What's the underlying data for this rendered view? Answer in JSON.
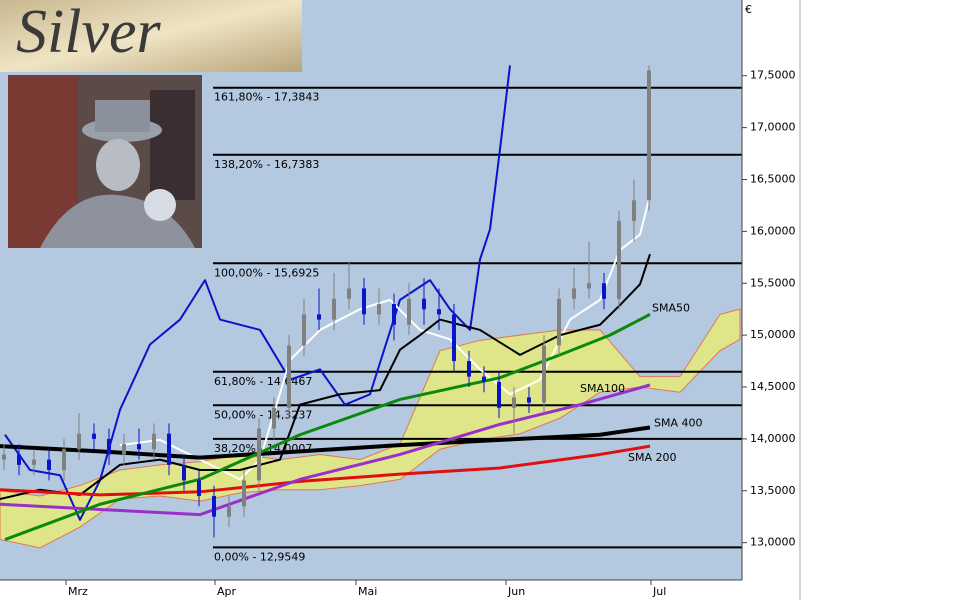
{
  "chart_data": {
    "type": "candlestick",
    "logo": "Silver",
    "currency": "€",
    "xlim": [
      0,
      148.4
    ],
    "ylim": [
      12.64,
      18.23
    ],
    "xticks": [
      {
        "value": 13.2,
        "label": "Mrz"
      },
      {
        "value": 43,
        "label": "Apr"
      },
      {
        "value": 71.2,
        "label": "Mai"
      },
      {
        "value": 101.2,
        "label": "Jun"
      },
      {
        "value": 130.2,
        "label": "Jul"
      }
    ],
    "yticks": [
      {
        "value": 13,
        "label": "13,0000"
      },
      {
        "value": 13.5,
        "label": "13,5000"
      },
      {
        "value": 14,
        "label": "14,0000"
      },
      {
        "value": 14.5,
        "label": "14,5000"
      },
      {
        "value": 15,
        "label": "15,0000"
      },
      {
        "value": 15.5,
        "label": "15,5000"
      },
      {
        "value": 16,
        "label": "16,0000"
      },
      {
        "value": 16.5,
        "label": "16,5000"
      },
      {
        "value": 17,
        "label": "17,0000"
      },
      {
        "value": 17.5,
        "label": "17,5000"
      }
    ],
    "fib_levels": [
      {
        "label": "161,80% - 17,3843",
        "value": 17.3843
      },
      {
        "label": "138,20% - 16,7383",
        "value": 16.7383
      },
      {
        "label": "100,00% - 15,6925",
        "value": 15.6925
      },
      {
        "label": "61,80% - 14,6467",
        "value": 14.6467
      },
      {
        "label": "50,00% - 14,3237",
        "value": 14.3237
      },
      {
        "label": "38,20% - 14,0007",
        "value": 14.0007
      },
      {
        "label": "0,00% - 12,9549",
        "value": 12.9549
      }
    ],
    "cloud": {
      "color": "#dfe68a",
      "edge": "#e07850",
      "x": [
        0,
        8,
        16,
        24,
        32,
        40,
        48,
        56,
        64,
        72,
        80,
        88,
        96,
        104,
        112,
        120,
        128,
        136,
        144,
        148
      ],
      "upper": [
        13.5,
        13.45,
        13.55,
        13.7,
        13.75,
        13.78,
        13.85,
        13.8,
        13.85,
        13.8,
        13.95,
        14.85,
        14.95,
        15.0,
        15.05,
        15.05,
        14.6,
        14.6,
        15.2,
        15.25
      ],
      "lower": [
        13.03,
        12.95,
        13.15,
        13.42,
        13.45,
        13.4,
        13.48,
        13.51,
        13.51,
        13.55,
        13.61,
        13.9,
        13.99,
        14.05,
        14.2,
        14.45,
        14.5,
        14.45,
        14.85,
        14.96
      ]
    },
    "candles": {
      "up_color": "#808080",
      "down_color": "#0a14c8",
      "x": [
        0,
        3,
        6,
        9,
        12,
        15,
        18,
        21,
        24,
        27,
        30,
        33,
        36,
        39,
        42,
        45,
        48,
        51,
        54,
        57,
        60,
        63,
        66,
        69,
        72,
        75,
        78,
        81,
        84,
        87,
        90,
        93,
        96,
        99,
        102,
        105,
        108,
        111,
        114,
        117,
        120,
        123,
        126,
        129
      ],
      "open": [
        13.8,
        13.85,
        13.75,
        13.8,
        13.7,
        13.9,
        14.05,
        14.0,
        13.85,
        13.95,
        13.9,
        14.05,
        13.75,
        13.6,
        13.45,
        13.25,
        13.35,
        13.6,
        14.1,
        14.3,
        14.9,
        15.2,
        15.15,
        15.35,
        15.45,
        15.2,
        15.3,
        15.1,
        15.35,
        15.25,
        15.2,
        14.75,
        14.6,
        14.55,
        14.3,
        14.4,
        14.35,
        14.9,
        15.35,
        15.45,
        15.5,
        15.35,
        16.1,
        16.3
      ],
      "high": [
        13.95,
        13.95,
        13.9,
        13.9,
        14.0,
        14.25,
        14.15,
        14.1,
        14.05,
        14.1,
        14.15,
        14.15,
        13.85,
        13.7,
        13.55,
        13.45,
        13.7,
        14.2,
        14.4,
        15.0,
        15.35,
        15.45,
        15.6,
        15.7,
        15.55,
        15.45,
        15.4,
        15.5,
        15.55,
        15.45,
        15.3,
        14.85,
        14.7,
        14.65,
        14.5,
        14.5,
        15.0,
        15.45,
        15.65,
        15.9,
        15.6,
        16.2,
        16.5,
        17.6
      ],
      "low": [
        13.7,
        13.65,
        13.65,
        13.6,
        13.6,
        13.8,
        13.9,
        13.75,
        13.75,
        13.8,
        13.8,
        13.65,
        13.5,
        13.35,
        13.05,
        13.15,
        13.25,
        13.5,
        14.0,
        14.2,
        14.8,
        15.05,
        15.05,
        15.25,
        15.1,
        15.1,
        14.95,
        15.0,
        15.1,
        15.05,
        14.65,
        14.5,
        14.45,
        14.2,
        14.05,
        14.25,
        14.25,
        14.8,
        15.25,
        15.35,
        15.25,
        15.25,
        15.9,
        16.2
      ],
      "close": [
        13.85,
        13.75,
        13.8,
        13.7,
        13.9,
        14.05,
        14.0,
        13.85,
        13.95,
        13.9,
        14.05,
        13.75,
        13.6,
        13.45,
        13.25,
        13.35,
        13.6,
        14.1,
        14.3,
        14.9,
        15.2,
        15.15,
        15.35,
        15.45,
        15.2,
        15.3,
        15.1,
        15.35,
        15.25,
        15.2,
        14.75,
        14.6,
        14.55,
        14.3,
        14.4,
        14.35,
        14.9,
        15.35,
        15.45,
        15.5,
        15.35,
        16.1,
        16.3,
        17.55
      ]
    },
    "series": [
      {
        "color": "#0a14c8",
        "width": 2,
        "x": [
          1,
          6,
          12,
          16,
          20,
          24,
          30,
          36,
          41,
          44,
          52,
          58,
          64,
          69,
          74,
          80,
          86,
          90,
          94,
          96,
          98,
          100,
          102
        ],
        "values": [
          14.04,
          13.7,
          13.65,
          13.22,
          13.6,
          14.28,
          14.91,
          15.15,
          15.53,
          15.15,
          15.05,
          14.57,
          14.67,
          14.33,
          14.43,
          15.34,
          15.53,
          15.25,
          15.05,
          15.73,
          16.02,
          16.79,
          17.6
        ]
      },
      {
        "color": "#ffffff",
        "width": 2,
        "x": [
          24,
          32,
          40,
          48,
          52,
          58,
          64,
          72,
          78,
          84,
          90,
          96,
          102,
          108,
          114,
          120,
          124,
          128,
          130
        ],
        "values": [
          13.94,
          13.99,
          13.8,
          13.61,
          13.8,
          14.76,
          15.05,
          15.25,
          15.34,
          15.05,
          14.96,
          14.67,
          14.43,
          14.57,
          15.15,
          15.34,
          15.82,
          15.97,
          16.35
        ]
      },
      {
        "color": "#000000",
        "width": 2,
        "x": [
          0,
          8,
          16,
          24,
          32,
          40,
          48,
          56,
          60,
          68,
          76,
          80,
          84,
          88,
          96,
          104,
          112,
          120,
          124,
          128,
          130
        ],
        "values": [
          13.42,
          13.51,
          13.46,
          13.75,
          13.8,
          13.7,
          13.7,
          13.8,
          14.33,
          14.43,
          14.47,
          14.86,
          15.0,
          15.15,
          15.05,
          14.81,
          15.0,
          15.1,
          15.29,
          15.49,
          15.78
        ]
      },
      {
        "name": "SMA 200",
        "color": "#e01010",
        "width": 3,
        "x": [
          0,
          20,
          40,
          60,
          80,
          100,
          120,
          130
        ],
        "values": [
          13.51,
          13.46,
          13.49,
          13.59,
          13.66,
          13.72,
          13.85,
          13.93
        ]
      },
      {
        "name": "SMA 400",
        "color": "#000000",
        "width": 4,
        "x": [
          0,
          20,
          40,
          60,
          80,
          100,
          120,
          130
        ],
        "values": [
          13.93,
          13.88,
          13.82,
          13.88,
          13.94,
          13.99,
          14.04,
          14.11
        ]
      },
      {
        "name": "SMA100",
        "color": "#9a30c8",
        "width": 3,
        "x": [
          0,
          20,
          40,
          60,
          80,
          100,
          116,
          130
        ],
        "values": [
          13.37,
          13.32,
          13.27,
          13.61,
          13.85,
          14.14,
          14.33,
          14.52
        ]
      },
      {
        "name": "SMA50",
        "color": "#0a8a0a",
        "width": 3,
        "x": [
          1,
          20,
          40,
          60,
          80,
          100,
          112,
          122,
          130
        ],
        "values": [
          13.03,
          13.37,
          13.61,
          14.04,
          14.38,
          14.59,
          14.81,
          15.0,
          15.2
        ]
      }
    ]
  }
}
